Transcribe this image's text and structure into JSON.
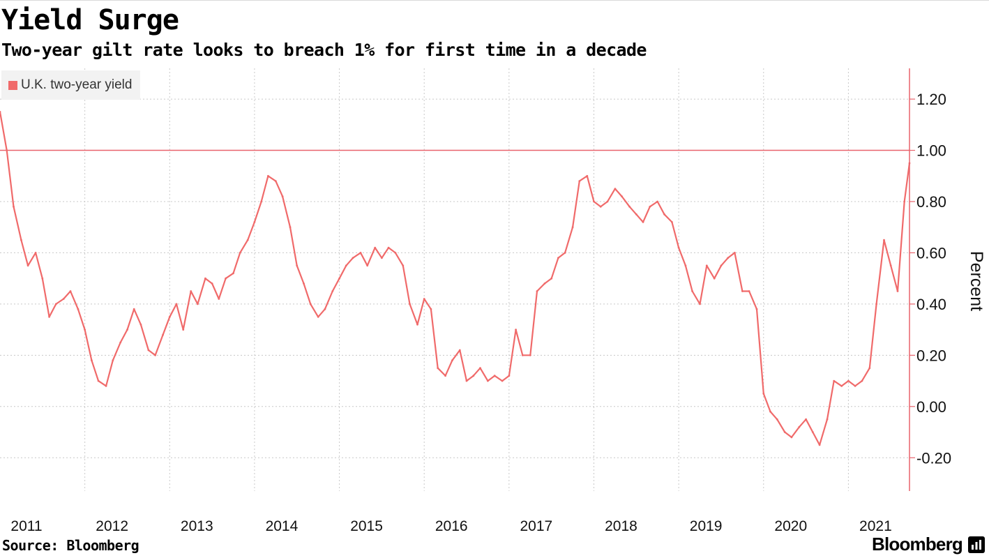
{
  "header": {
    "title": "Yield Surge",
    "subtitle": "Two-year gilt rate looks to breach 1% for first time in a decade"
  },
  "footer": {
    "source": "Source: Bloomberg",
    "brand": "Bloomberg"
  },
  "colors": {
    "series": "#f06a6a",
    "axis": "#e8626b",
    "grid": "#c8c8c8",
    "legend_bg": "#f2f2f2"
  },
  "chart_data": {
    "type": "line",
    "title": "Yield Surge",
    "subtitle": "Two-year gilt rate looks to breach 1% for first time in a decade",
    "xlabel": "",
    "ylabel": "Percent",
    "legend": [
      "U.K. two-year yield"
    ],
    "legend_position": "top-left",
    "y_axis_side": "right",
    "ylim": [
      -0.33,
      1.32
    ],
    "xlim": [
      2011.0,
      2021.72
    ],
    "x_ticks": [
      2011,
      2012,
      2013,
      2014,
      2015,
      2016,
      2017,
      2018,
      2019,
      2020,
      2021
    ],
    "x_tick_labels": [
      "2011",
      "2012",
      "2013",
      "2014",
      "2015",
      "2016",
      "2017",
      "2018",
      "2019",
      "2020",
      "2021"
    ],
    "y_ticks": [
      -0.2,
      0.0,
      0.2,
      0.4,
      0.6,
      0.8,
      1.0,
      1.2
    ],
    "y_tick_labels": [
      "-0.20",
      "0.00",
      "0.20",
      "0.40",
      "0.60",
      "0.80",
      "1.00",
      "1.20"
    ],
    "reference_line": {
      "y": 1.0
    },
    "grid": true,
    "series": [
      {
        "name": "U.K. two-year yield",
        "x": [
          2011.0,
          2011.08,
          2011.16,
          2011.25,
          2011.33,
          2011.42,
          2011.5,
          2011.58,
          2011.66,
          2011.75,
          2011.83,
          2011.92,
          2012.0,
          2012.08,
          2012.16,
          2012.25,
          2012.33,
          2012.42,
          2012.5,
          2012.58,
          2012.66,
          2012.75,
          2012.83,
          2012.92,
          2013.0,
          2013.08,
          2013.16,
          2013.25,
          2013.33,
          2013.42,
          2013.5,
          2013.58,
          2013.66,
          2013.75,
          2013.83,
          2013.92,
          2014.0,
          2014.08,
          2014.16,
          2014.25,
          2014.33,
          2014.42,
          2014.5,
          2014.58,
          2014.66,
          2014.75,
          2014.83,
          2014.92,
          2015.0,
          2015.08,
          2015.16,
          2015.25,
          2015.33,
          2015.42,
          2015.5,
          2015.58,
          2015.66,
          2015.75,
          2015.83,
          2015.92,
          2016.0,
          2016.08,
          2016.16,
          2016.25,
          2016.33,
          2016.42,
          2016.5,
          2016.58,
          2016.66,
          2016.75,
          2016.83,
          2016.92,
          2017.0,
          2017.08,
          2017.16,
          2017.25,
          2017.33,
          2017.42,
          2017.5,
          2017.58,
          2017.66,
          2017.75,
          2017.83,
          2017.92,
          2018.0,
          2018.08,
          2018.16,
          2018.25,
          2018.33,
          2018.42,
          2018.5,
          2018.58,
          2018.66,
          2018.75,
          2018.83,
          2018.92,
          2019.0,
          2019.08,
          2019.16,
          2019.25,
          2019.33,
          2019.42,
          2019.5,
          2019.58,
          2019.66,
          2019.75,
          2019.83,
          2019.92,
          2020.0,
          2020.08,
          2020.16,
          2020.25,
          2020.33,
          2020.42,
          2020.5,
          2020.58,
          2020.66,
          2020.75,
          2020.83,
          2020.92,
          2021.0,
          2021.08,
          2021.16,
          2021.25,
          2021.33,
          2021.42,
          2021.5,
          2021.58,
          2021.66,
          2021.72
        ],
        "y": [
          1.15,
          1.0,
          0.78,
          0.65,
          0.55,
          0.6,
          0.5,
          0.35,
          0.4,
          0.42,
          0.45,
          0.38,
          0.3,
          0.18,
          0.1,
          0.08,
          0.18,
          0.25,
          0.3,
          0.38,
          0.32,
          0.22,
          0.2,
          0.28,
          0.35,
          0.4,
          0.3,
          0.45,
          0.4,
          0.5,
          0.48,
          0.42,
          0.5,
          0.52,
          0.6,
          0.65,
          0.72,
          0.8,
          0.9,
          0.88,
          0.82,
          0.7,
          0.55,
          0.48,
          0.4,
          0.35,
          0.38,
          0.45,
          0.5,
          0.55,
          0.58,
          0.6,
          0.55,
          0.62,
          0.58,
          0.62,
          0.6,
          0.55,
          0.4,
          0.32,
          0.42,
          0.38,
          0.15,
          0.12,
          0.18,
          0.22,
          0.1,
          0.12,
          0.15,
          0.1,
          0.12,
          0.1,
          0.12,
          0.3,
          0.2,
          0.2,
          0.45,
          0.48,
          0.5,
          0.58,
          0.6,
          0.7,
          0.88,
          0.9,
          0.8,
          0.78,
          0.8,
          0.85,
          0.82,
          0.78,
          0.75,
          0.72,
          0.78,
          0.8,
          0.75,
          0.72,
          0.62,
          0.55,
          0.45,
          0.4,
          0.55,
          0.5,
          0.55,
          0.58,
          0.6,
          0.45,
          0.45,
          0.38,
          0.05,
          -0.02,
          -0.05,
          -0.1,
          -0.12,
          -0.08,
          -0.05,
          -0.1,
          -0.15,
          -0.05,
          0.1,
          0.08,
          0.1,
          0.08,
          0.1,
          0.15,
          0.4,
          0.65,
          0.55,
          0.45,
          0.8,
          0.95
        ]
      }
    ]
  }
}
